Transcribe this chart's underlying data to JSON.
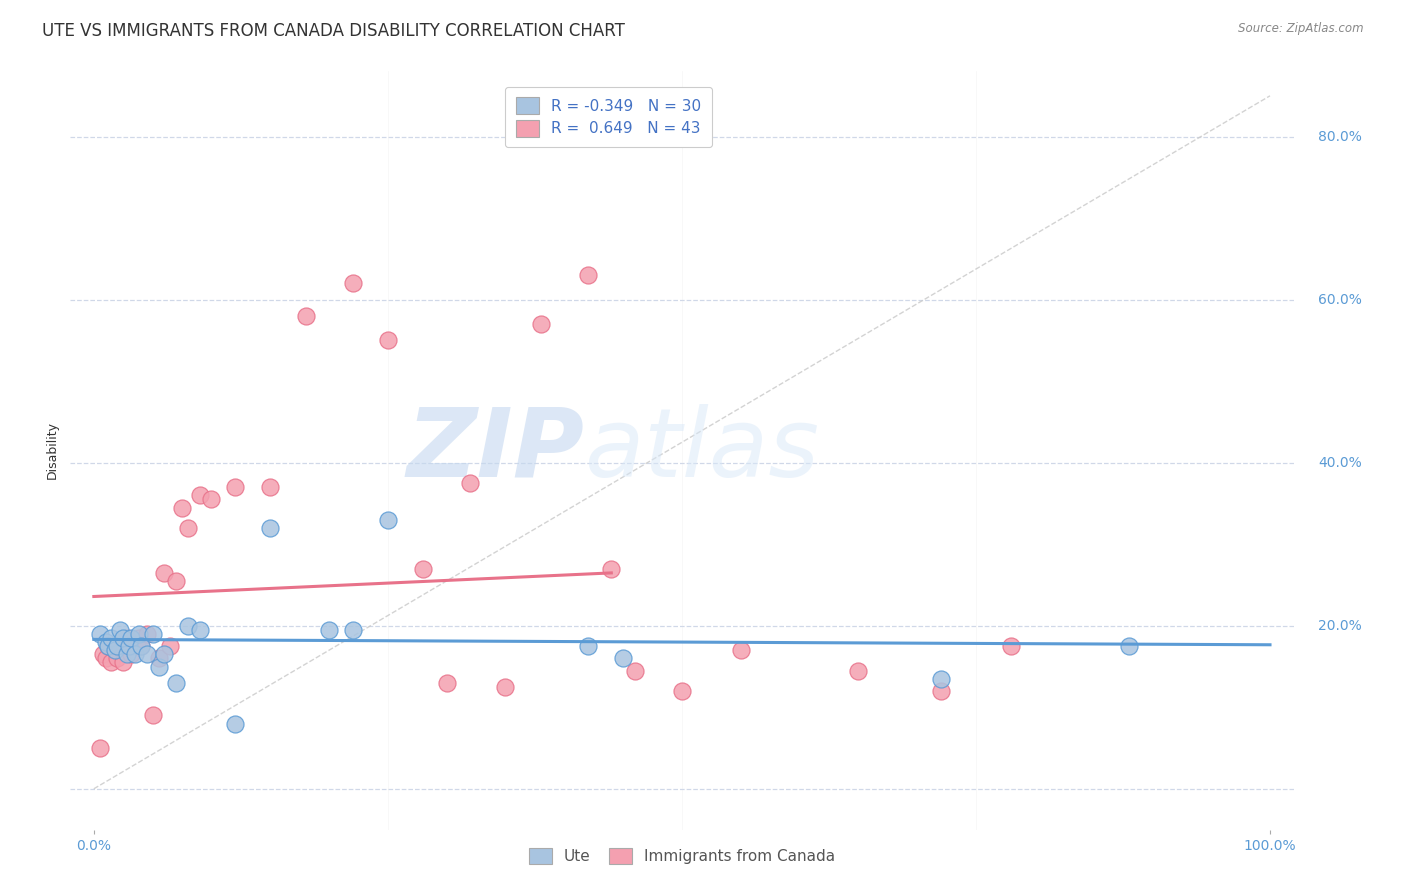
{
  "title": "UTE VS IMMIGRANTS FROM CANADA DISABILITY CORRELATION CHART",
  "source": "Source: ZipAtlas.com",
  "ylabel": "Disability",
  "xlim": [
    -0.02,
    1.02
  ],
  "ylim": [
    -0.05,
    0.88
  ],
  "ute_color": "#a8c4e0",
  "immigrants_color": "#f4a0b0",
  "ute_line_color": "#5b9bd5",
  "immigrants_line_color": "#e8728a",
  "diagonal_color": "#c8c8c8",
  "ute_R": -0.349,
  "ute_N": 30,
  "immigrants_R": 0.649,
  "immigrants_N": 43,
  "ute_scatter_x": [
    0.005,
    0.01,
    0.012,
    0.015,
    0.018,
    0.02,
    0.022,
    0.025,
    0.028,
    0.03,
    0.032,
    0.035,
    0.038,
    0.04,
    0.045,
    0.05,
    0.055,
    0.06,
    0.07,
    0.08,
    0.09,
    0.12,
    0.15,
    0.2,
    0.22,
    0.25,
    0.42,
    0.45,
    0.72,
    0.88
  ],
  "ute_scatter_y": [
    0.19,
    0.18,
    0.175,
    0.185,
    0.17,
    0.175,
    0.195,
    0.185,
    0.165,
    0.175,
    0.185,
    0.165,
    0.19,
    0.175,
    0.165,
    0.19,
    0.15,
    0.165,
    0.13,
    0.2,
    0.195,
    0.08,
    0.32,
    0.195,
    0.195,
    0.33,
    0.175,
    0.16,
    0.135,
    0.175
  ],
  "immigrants_scatter_x": [
    0.005,
    0.008,
    0.01,
    0.012,
    0.015,
    0.018,
    0.02,
    0.022,
    0.025,
    0.028,
    0.03,
    0.032,
    0.035,
    0.038,
    0.04,
    0.045,
    0.05,
    0.055,
    0.06,
    0.065,
    0.07,
    0.075,
    0.08,
    0.09,
    0.1,
    0.12,
    0.15,
    0.18,
    0.22,
    0.25,
    0.28,
    0.3,
    0.32,
    0.35,
    0.38,
    0.42,
    0.44,
    0.46,
    0.5,
    0.55,
    0.65,
    0.72,
    0.78
  ],
  "immigrants_scatter_y": [
    0.05,
    0.165,
    0.16,
    0.175,
    0.155,
    0.17,
    0.16,
    0.175,
    0.155,
    0.185,
    0.175,
    0.165,
    0.175,
    0.185,
    0.175,
    0.19,
    0.09,
    0.16,
    0.265,
    0.175,
    0.255,
    0.345,
    0.32,
    0.36,
    0.355,
    0.37,
    0.37,
    0.58,
    0.62,
    0.55,
    0.27,
    0.13,
    0.375,
    0.125,
    0.57,
    0.63,
    0.27,
    0.145,
    0.12,
    0.17,
    0.145,
    0.12,
    0.175
  ],
  "watermark_zip": "ZIP",
  "watermark_atlas": "atlas",
  "background_color": "#ffffff",
  "title_fontsize": 12,
  "axis_label_fontsize": 9,
  "tick_fontsize": 10,
  "legend_fontsize": 11,
  "grid_color": "#d0d8e8",
  "y_ticks": [
    0.0,
    0.2,
    0.4,
    0.6,
    0.8
  ],
  "y_tick_labels": [
    "",
    "20.0%",
    "40.0%",
    "60.0%",
    "80.0%"
  ],
  "x_ticks": [
    0.0,
    1.0
  ],
  "x_tick_labels": [
    "0.0%",
    "100.0%"
  ]
}
